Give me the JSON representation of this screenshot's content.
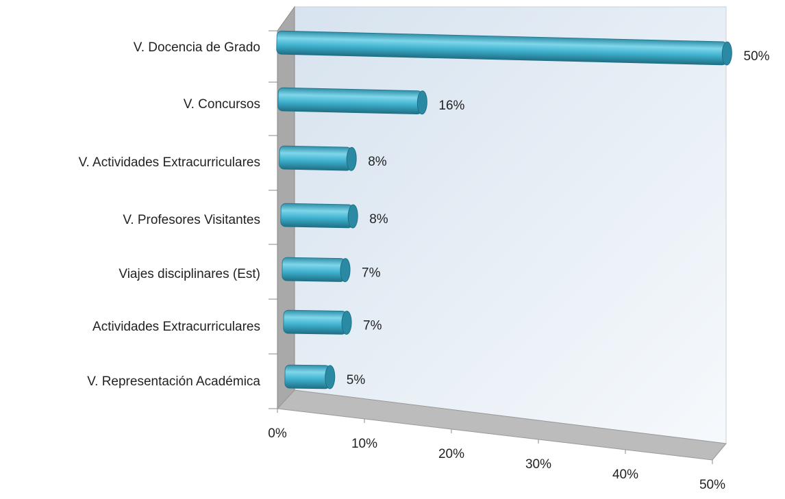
{
  "chart_data": {
    "type": "bar",
    "categories": [
      "V. Docencia de Grado",
      "V. Concursos",
      "V. Actividades Extracurriculares",
      "V. Profesores Visitantes",
      "Viajes disciplinares (Est)",
      "Actividades Extracurriculares",
      "V. Representación Académica"
    ],
    "values": [
      50,
      16,
      8,
      8,
      7,
      7,
      5
    ],
    "value_labels": [
      "50%",
      "16%",
      "8%",
      "8%",
      "7%",
      "7%",
      "5%"
    ],
    "color": "#3fb2cf",
    "xlim": [
      0,
      50
    ],
    "xticks": [
      {
        "value": 0,
        "label": "0%"
      },
      {
        "value": 10,
        "label": "10%"
      },
      {
        "value": 20,
        "label": "20%"
      },
      {
        "value": 30,
        "label": "30%"
      },
      {
        "value": 40,
        "label": "40%"
      },
      {
        "value": 50,
        "label": "50%"
      }
    ]
  }
}
